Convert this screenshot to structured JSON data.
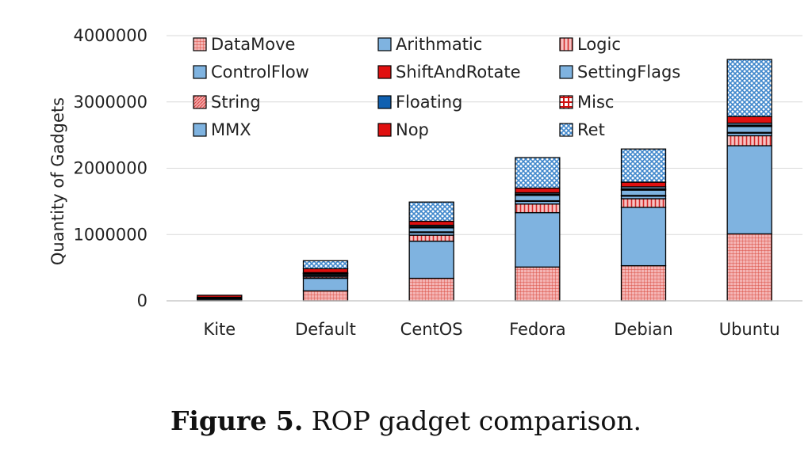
{
  "chart_data": {
    "type": "bar",
    "stacked": true,
    "categories": [
      "Kite",
      "Default",
      "CentOS",
      "Fedora",
      "Debian",
      "Ubuntu"
    ],
    "ylabel": "Quantity of Gadgets",
    "xlabel": "",
    "ylim": [
      0,
      4000000
    ],
    "yticks": [
      0,
      1000000,
      2000000,
      3000000,
      4000000
    ],
    "ytick_labels": [
      "0",
      "1000000",
      "2000000",
      "3000000",
      "4000000"
    ],
    "grid": true,
    "legend_position": "top-left, inside, 3 columns",
    "series": [
      {
        "name": "DataMove",
        "color": "#f2a0a0",
        "pattern": "grid",
        "values": [
          10000,
          150000,
          340000,
          510000,
          530000,
          1010000
        ]
      },
      {
        "name": "Arithmatic",
        "color": "#7fb3e0",
        "pattern": "solid",
        "values": [
          20000,
          190000,
          560000,
          820000,
          880000,
          1330000
        ]
      },
      {
        "name": "Logic",
        "color": "#f2a0a0",
        "pattern": "vstripe",
        "values": [
          4000,
          20000,
          90000,
          130000,
          130000,
          150000
        ]
      },
      {
        "name": "ControlFlow",
        "color": "#7fb3e0",
        "pattern": "solid",
        "values": [
          10000,
          20000,
          40000,
          40000,
          40000,
          40000
        ]
      },
      {
        "name": "ShiftAndRotate",
        "color": "#e01010",
        "pattern": "solid",
        "values": [
          1000,
          5000,
          10000,
          10000,
          10000,
          10000
        ]
      },
      {
        "name": "SettingFlags",
        "color": "#7fb3e0",
        "pattern": "solid",
        "values": [
          4000,
          20000,
          60000,
          80000,
          80000,
          90000
        ]
      },
      {
        "name": "String",
        "color": "#f2a0a0",
        "pattern": "diag",
        "values": [
          1000,
          5000,
          10000,
          10000,
          10000,
          10000
        ]
      },
      {
        "name": "Floating",
        "color": "#1060b0",
        "pattern": "solid",
        "values": [
          0,
          0,
          0,
          0,
          0,
          0
        ]
      },
      {
        "name": "Misc",
        "color": "#e01010",
        "pattern": "cross",
        "values": [
          1000,
          5000,
          10000,
          10000,
          10000,
          10000
        ]
      },
      {
        "name": "MMX",
        "color": "#7fb3e0",
        "pattern": "solid",
        "values": [
          3000,
          10000,
          20000,
          20000,
          30000,
          30000
        ]
      },
      {
        "name": "Nop",
        "color": "#e01010",
        "pattern": "solid",
        "values": [
          30000,
          60000,
          60000,
          70000,
          70000,
          100000
        ]
      },
      {
        "name": "Ret",
        "color": "#5b9bd5",
        "pattern": "dots",
        "values": [
          0,
          120000,
          290000,
          460000,
          500000,
          860000
        ]
      }
    ]
  },
  "caption": {
    "label": "Figure 5.",
    "text": " ROP gadget comparison."
  }
}
